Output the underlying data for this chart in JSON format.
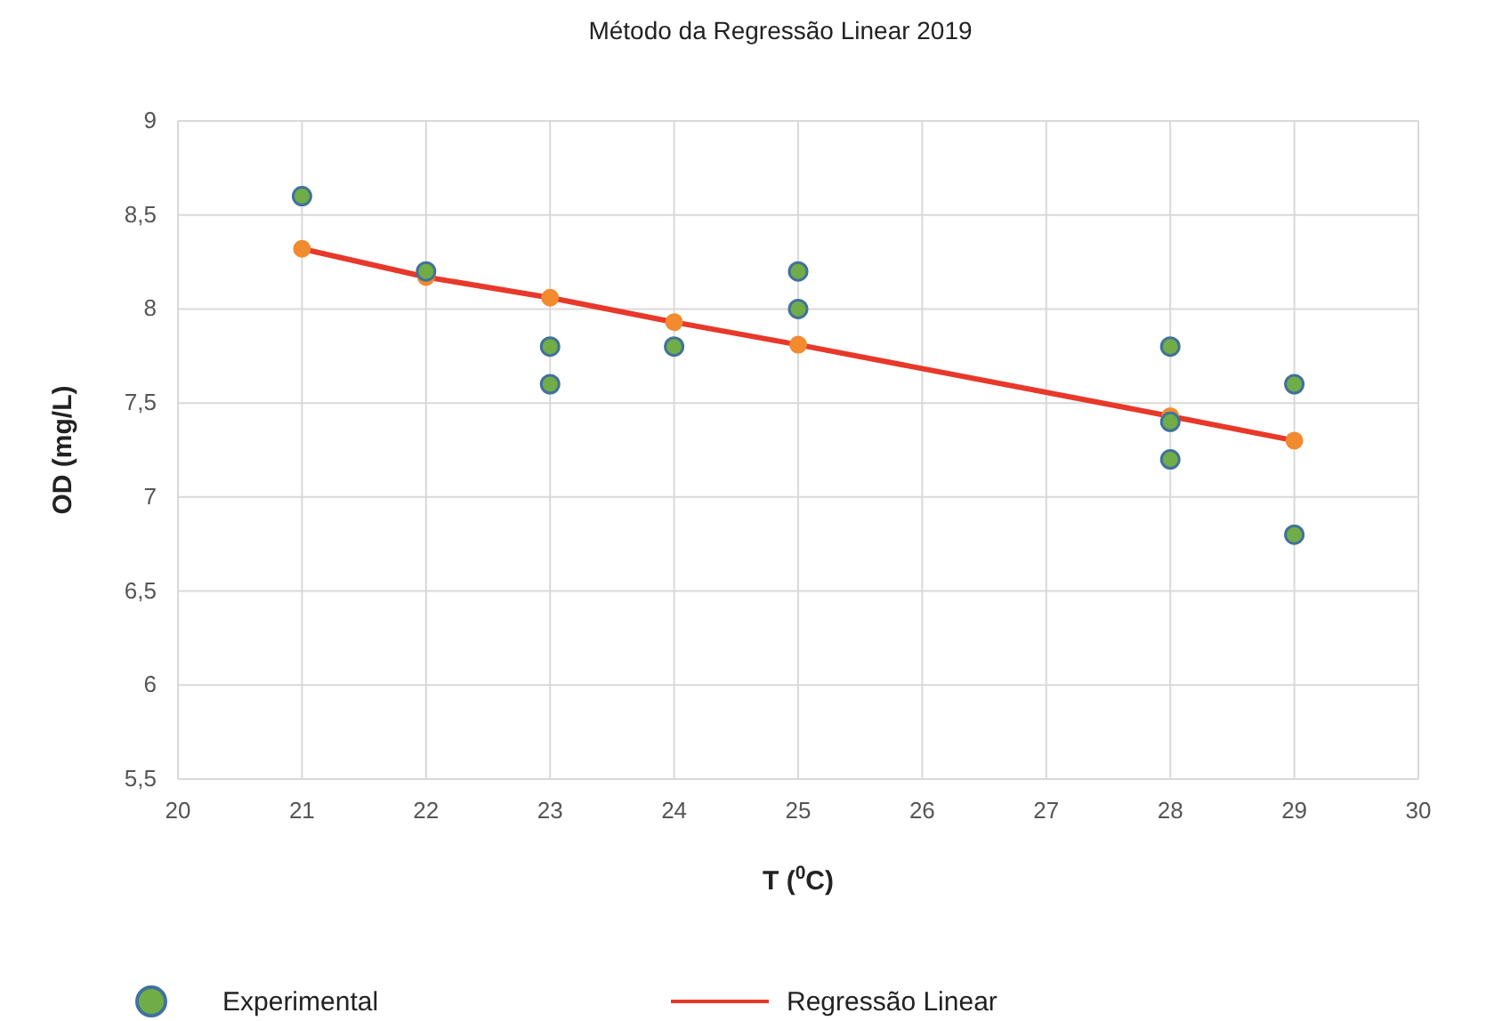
{
  "chart_data": {
    "type": "scatter",
    "title": "Método da Regressão Linear 2019",
    "xlabel": "T ($^{0}$C)",
    "ylabel": "OD (mg/L)",
    "xlim": [
      20,
      30
    ],
    "xticks": [
      20,
      21,
      22,
      23,
      24,
      25,
      26,
      27,
      28,
      29,
      30
    ],
    "ylim": [
      5.5,
      9
    ],
    "yticks": [
      {
        "value": 5.5,
        "label": "5,5"
      },
      {
        "value": 6,
        "label": "6"
      },
      {
        "value": 6.5,
        "label": "6,5"
      },
      {
        "value": 7,
        "label": "7"
      },
      {
        "value": 7.5,
        "label": "7,5"
      },
      {
        "value": 8,
        "label": "8"
      },
      {
        "value": 8.5,
        "label": "8,5"
      },
      {
        "value": 9,
        "label": "9"
      }
    ],
    "grid": true,
    "legend": "bottom",
    "series": [
      {
        "name": "Experimental",
        "color": "#70ad47",
        "marker": "circle",
        "x": [
          21,
          22,
          23,
          23,
          24,
          25,
          25,
          28,
          28,
          28,
          29,
          29
        ],
        "values": [
          8.6,
          8.2,
          7.8,
          7.6,
          7.8,
          8.2,
          8.0,
          7.8,
          7.4,
          7.2,
          7.6,
          6.8
        ]
      },
      {
        "name": "Regressão Linear",
        "type": "line",
        "color": "#e8382a",
        "marker": "none",
        "x": [
          21,
          22,
          23,
          24,
          25,
          28,
          29
        ],
        "values": [
          8.32,
          8.17,
          8.06,
          7.93,
          7.81,
          7.43,
          7.3
        ]
      },
      {
        "color": "#f28a30",
        "marker": "circle",
        "x": [
          21,
          22,
          23,
          24,
          25,
          28,
          29
        ],
        "values": [
          8.32,
          8.17,
          8.06,
          7.93,
          7.81,
          7.43,
          7.3
        ]
      }
    ]
  }
}
